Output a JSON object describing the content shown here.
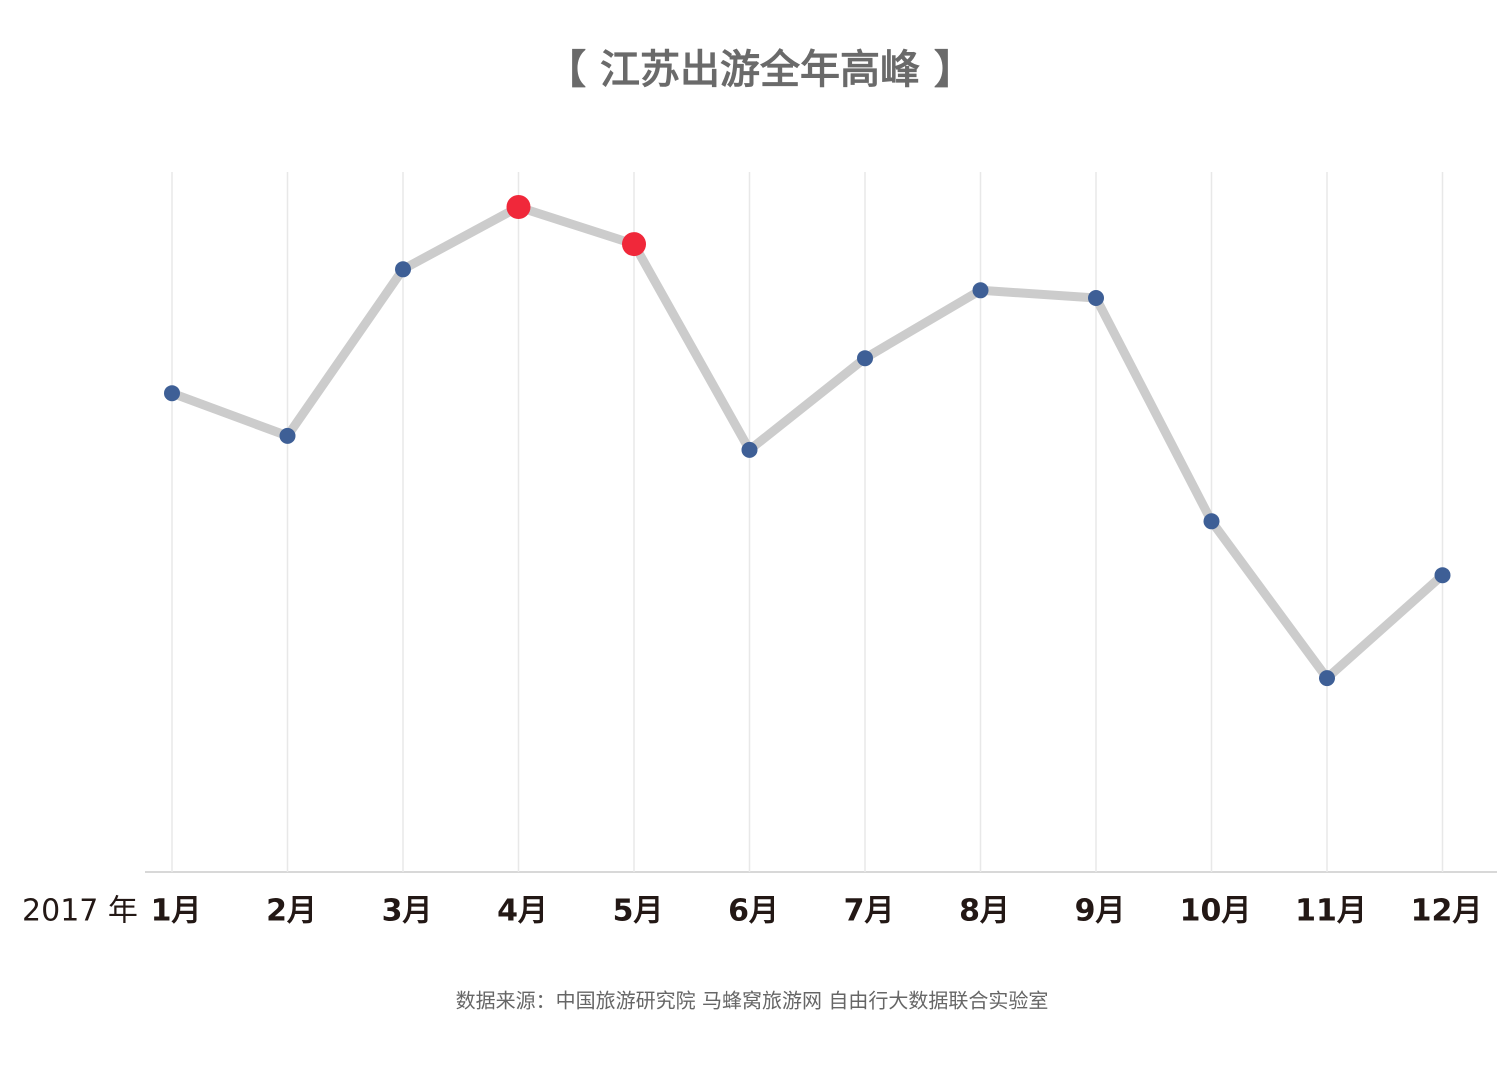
{
  "chart_data": {
    "type": "line",
    "title": "【 江苏出游全年高峰 】",
    "x_label": "2017 年",
    "categories": [
      "1月",
      "2月",
      "3月",
      "4月",
      "5月",
      "6月",
      "7月",
      "8月",
      "9月",
      "10月",
      "11月",
      "12月"
    ],
    "series": [
      {
        "color": "#cccccc",
        "marker_color": "#3e5f96",
        "point_colors": [
          "#3e5f96",
          "#3e5f96",
          "#3e5f96",
          "#f0283a",
          "#f0283a",
          "#3e5f96",
          "#3e5f96",
          "#3e5f96",
          "#3e5f96",
          "#3e5f96",
          "#3e5f96",
          "#3e5f96"
        ],
        "values": [
          68.4,
          62.3,
          86.1,
          95,
          89.7,
          60.3,
          73.4,
          83.1,
          82,
          50.1,
          27.7,
          42.4
        ]
      }
    ],
    "ylim": [
      0,
      100
    ],
    "grid": true,
    "source": "数据来源：中国旅游研究院 马蜂窝旅游网 自由行大数据联合实验室"
  }
}
